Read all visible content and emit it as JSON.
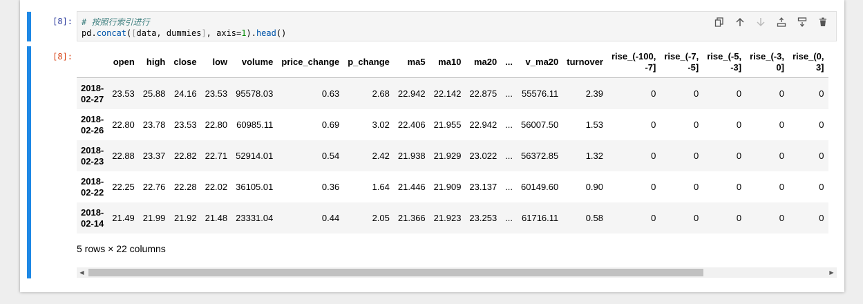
{
  "input_cell": {
    "prompt": "[8]:",
    "comment": "# 按照行索引进行",
    "code": {
      "p1": "pd.",
      "fn1": "concat",
      "p2": "(",
      "b1": "[",
      "p3": "data, dummies",
      "b2": "]",
      "p4": ", axis=",
      "num": "1",
      "p5": ").",
      "fn2": "head",
      "p6": "()"
    }
  },
  "toolbar_icons": [
    "copy-icon",
    "arrow-up-icon",
    "arrow-down-icon",
    "insert-above-icon",
    "insert-below-icon",
    "delete-icon"
  ],
  "output_cell": {
    "prompt": "[8]:"
  },
  "table": {
    "columns": [
      "open",
      "high",
      "close",
      "low",
      "volume",
      "price_change",
      "p_change",
      "ma5",
      "ma10",
      "ma20",
      "...",
      "v_ma20",
      "turnover",
      "rise_(-100,\n-7]",
      "rise_(-7,\n-5]",
      "rise_(-5,\n-3]",
      "rise_(-3,\n0]",
      "rise_(0,\n3]"
    ],
    "rows": [
      {
        "index": "2018-\n02-27",
        "cells": [
          "23.53",
          "25.88",
          "24.16",
          "23.53",
          "95578.03",
          "0.63",
          "2.68",
          "22.942",
          "22.142",
          "22.875",
          "...",
          "55576.11",
          "2.39",
          "0",
          "0",
          "0",
          "0",
          "0"
        ]
      },
      {
        "index": "2018-\n02-26",
        "cells": [
          "22.80",
          "23.78",
          "23.53",
          "22.80",
          "60985.11",
          "0.69",
          "3.02",
          "22.406",
          "21.955",
          "22.942",
          "...",
          "56007.50",
          "1.53",
          "0",
          "0",
          "0",
          "0",
          "0"
        ]
      },
      {
        "index": "2018-\n02-23",
        "cells": [
          "22.88",
          "23.37",
          "22.82",
          "22.71",
          "52914.01",
          "0.54",
          "2.42",
          "21.938",
          "21.929",
          "23.022",
          "...",
          "56372.85",
          "1.32",
          "0",
          "0",
          "0",
          "0",
          "0"
        ]
      },
      {
        "index": "2018-\n02-22",
        "cells": [
          "22.25",
          "22.76",
          "22.28",
          "22.02",
          "36105.01",
          "0.36",
          "1.64",
          "21.446",
          "21.909",
          "23.137",
          "...",
          "60149.60",
          "0.90",
          "0",
          "0",
          "0",
          "0",
          "0"
        ]
      },
      {
        "index": "2018-\n02-14",
        "cells": [
          "21.49",
          "21.99",
          "21.92",
          "21.48",
          "23331.04",
          "0.44",
          "2.05",
          "21.366",
          "21.923",
          "23.253",
          "...",
          "61716.11",
          "0.58",
          "0",
          "0",
          "0",
          "0",
          "0"
        ]
      }
    ],
    "summary": "5 rows × 22 columns"
  },
  "scrollbar": {
    "left_arrow": "◀",
    "right_arrow": "▶"
  }
}
